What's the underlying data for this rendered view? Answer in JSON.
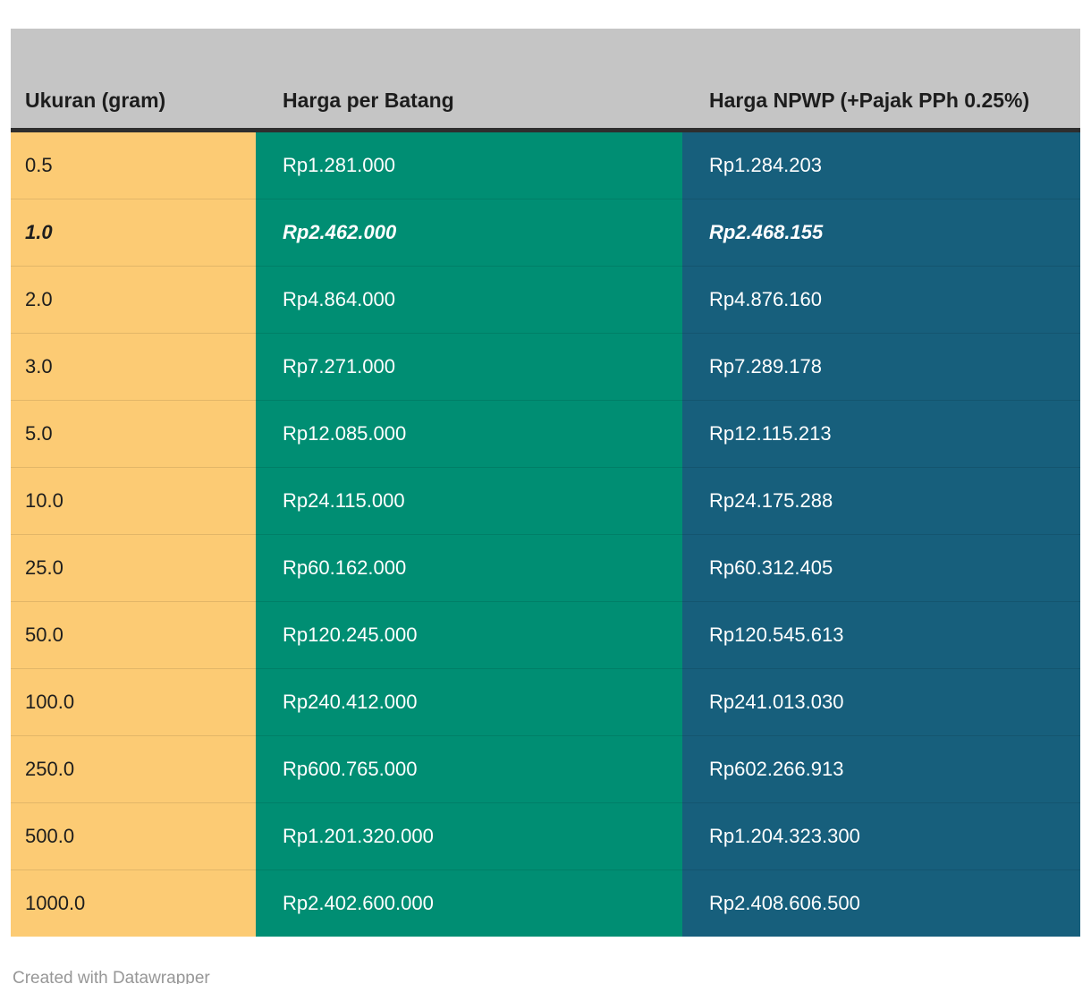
{
  "table": {
    "columns": [
      {
        "id": "ukuran",
        "label": "Ukuran (gram)"
      },
      {
        "id": "harga",
        "label": "Harga per Batang"
      },
      {
        "id": "npwp",
        "label": "Harga NPWP (+Pajak PPh 0.25%)"
      }
    ],
    "rows": [
      {
        "highlight": false,
        "cells": {
          "ukuran": "0.5",
          "harga": "Rp1.281.000",
          "npwp": "Rp1.284.203"
        }
      },
      {
        "highlight": true,
        "cells": {
          "ukuran": "1.0",
          "harga": "Rp2.462.000",
          "npwp": "Rp2.468.155"
        }
      },
      {
        "highlight": false,
        "cells": {
          "ukuran": "2.0",
          "harga": "Rp4.864.000",
          "npwp": "Rp4.876.160"
        }
      },
      {
        "highlight": false,
        "cells": {
          "ukuran": "3.0",
          "harga": "Rp7.271.000",
          "npwp": "Rp7.289.178"
        }
      },
      {
        "highlight": false,
        "cells": {
          "ukuran": "5.0",
          "harga": "Rp12.085.000",
          "npwp": "Rp12.115.213"
        }
      },
      {
        "highlight": false,
        "cells": {
          "ukuran": "10.0",
          "harga": "Rp24.115.000",
          "npwp": "Rp24.175.288"
        }
      },
      {
        "highlight": false,
        "cells": {
          "ukuran": "25.0",
          "harga": "Rp60.162.000",
          "npwp": "Rp60.312.405"
        }
      },
      {
        "highlight": false,
        "cells": {
          "ukuran": "50.0",
          "harga": "Rp120.245.000",
          "npwp": "Rp120.545.613"
        }
      },
      {
        "highlight": false,
        "cells": {
          "ukuran": "100.0",
          "harga": "Rp240.412.000",
          "npwp": "Rp241.013.030"
        }
      },
      {
        "highlight": false,
        "cells": {
          "ukuran": "250.0",
          "harga": "Rp600.765.000",
          "npwp": "Rp602.266.913"
        }
      },
      {
        "highlight": false,
        "cells": {
          "ukuran": "500.0",
          "harga": "Rp1.201.320.000",
          "npwp": "Rp1.204.323.300"
        }
      },
      {
        "highlight": false,
        "cells": {
          "ukuran": "1000.0",
          "harga": "Rp2.402.600.000",
          "npwp": "Rp2.408.606.500"
        }
      }
    ],
    "colors": {
      "header_bg": "#c5c5c5",
      "header_text": "#1d1d1d",
      "header_border": "#2e2e2e",
      "col_ukuran_bg": "#fccb74",
      "col_harga_bg": "#008e73",
      "col_npwp_bg": "#175f7c",
      "cell_text_dark": "#1d1d1d",
      "cell_text_light": "#ffffff",
      "footer_text": "#979797"
    }
  },
  "footer": {
    "credit": "Created with Datawrapper"
  },
  "chart_data": {
    "type": "table",
    "title": "",
    "columns": [
      "Ukuran (gram)",
      "Harga per Batang",
      "Harga NPWP (+Pajak PPh 0.25%)"
    ],
    "sizes_gram": [
      0.5,
      1.0,
      2.0,
      3.0,
      5.0,
      10.0,
      25.0,
      50.0,
      100.0,
      250.0,
      500.0,
      1000.0
    ],
    "harga_per_batang_rp": [
      1281000,
      2462000,
      4864000,
      7271000,
      12085000,
      24115000,
      60162000,
      120245000,
      240412000,
      600765000,
      1201320000,
      2402600000
    ],
    "harga_npwp_rp": [
      1284203,
      2468155,
      4876160,
      7289178,
      12115213,
      24175288,
      60312405,
      120545613,
      241013030,
      602266913,
      1204323300,
      2408606500
    ],
    "highlighted_row_size_gram": 1.0,
    "credit": "Created with Datawrapper"
  }
}
